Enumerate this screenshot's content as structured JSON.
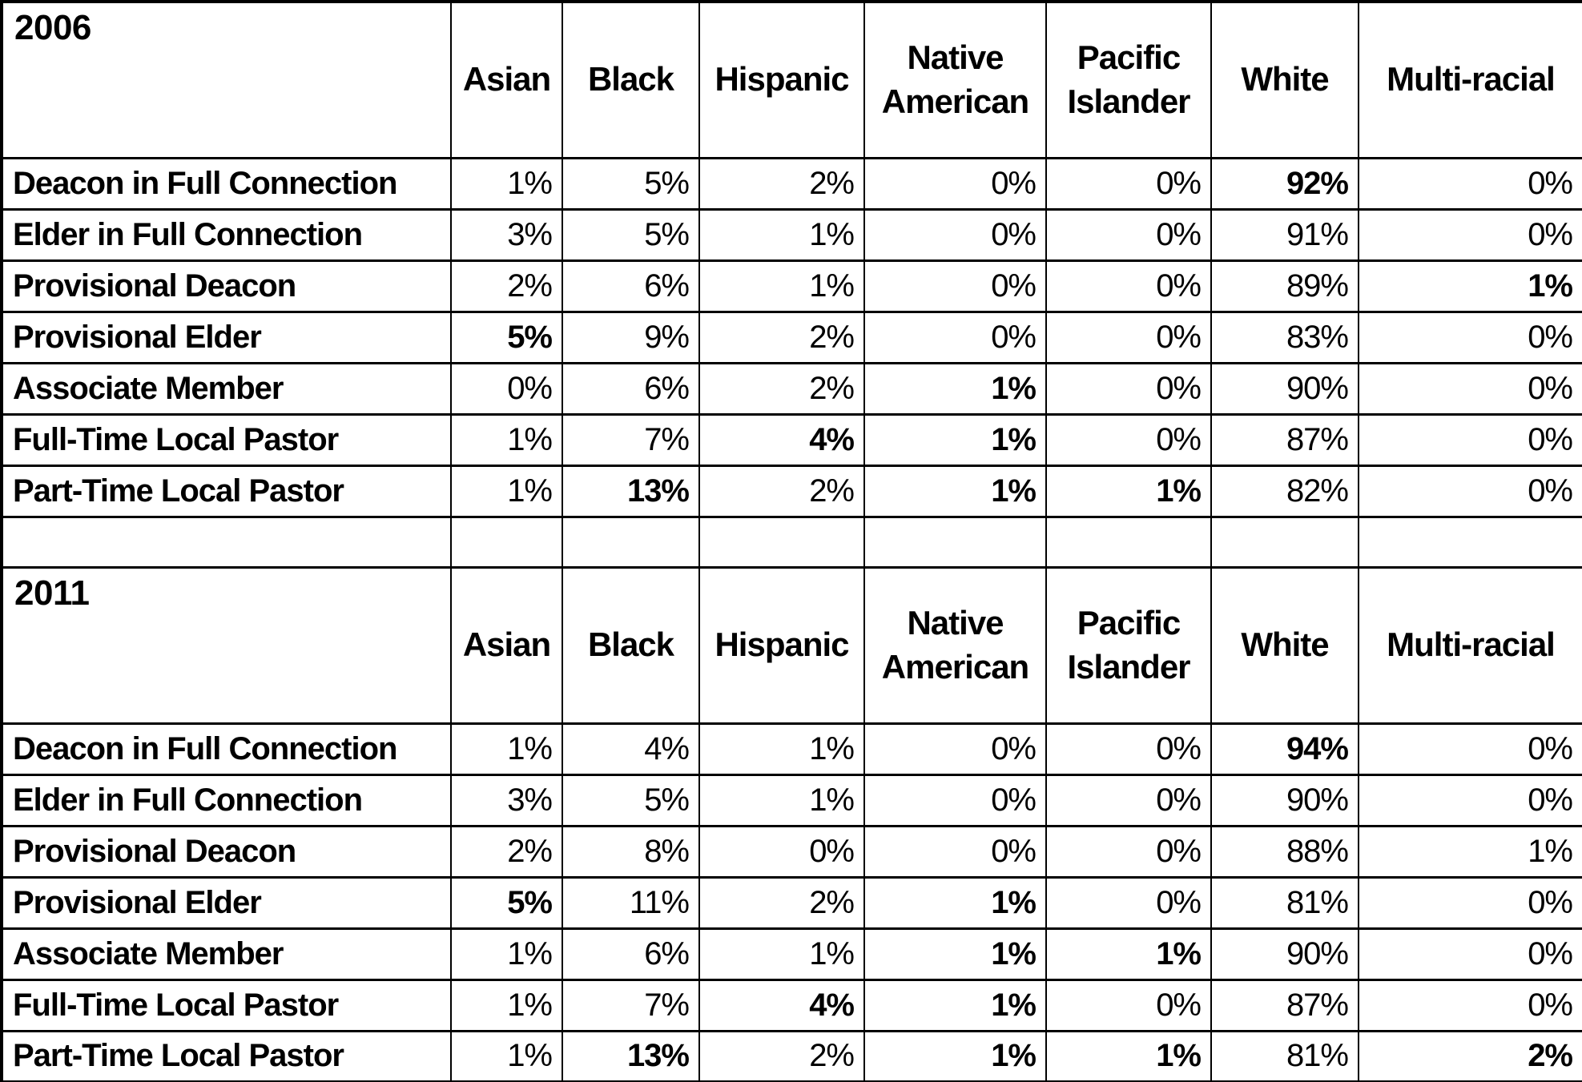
{
  "document": {
    "description": "Clergy racial composition by clergy type, 2006 vs 2011",
    "text_color": "#000000",
    "background_color": "#ffffff",
    "border_color": "#000000"
  },
  "sections": [
    {
      "year": "2006",
      "columns": [
        "Asian",
        "Black",
        "Hispanic",
        "Native American",
        "Pacific Islander",
        "White",
        "Multi-racial"
      ],
      "rows": [
        {
          "label": "Deacon in Full Connection",
          "values": [
            "1%",
            "5%",
            "2%",
            "0%",
            "0%",
            "92%",
            "0%"
          ],
          "bold": [
            false,
            false,
            false,
            false,
            false,
            true,
            false
          ]
        },
        {
          "label": "Elder in Full Connection",
          "values": [
            "3%",
            "5%",
            "1%",
            "0%",
            "0%",
            "91%",
            "0%"
          ],
          "bold": [
            false,
            false,
            false,
            false,
            false,
            false,
            false
          ]
        },
        {
          "label": "Provisional Deacon",
          "values": [
            "2%",
            "6%",
            "1%",
            "0%",
            "0%",
            "89%",
            "1%"
          ],
          "bold": [
            false,
            false,
            false,
            false,
            false,
            false,
            true
          ]
        },
        {
          "label": "Provisional Elder",
          "values": [
            "5%",
            "9%",
            "2%",
            "0%",
            "0%",
            "83%",
            "0%"
          ],
          "bold": [
            true,
            false,
            false,
            false,
            false,
            false,
            false
          ]
        },
        {
          "label": "Associate Member",
          "values": [
            "0%",
            "6%",
            "2%",
            "1%",
            "0%",
            "90%",
            "0%"
          ],
          "bold": [
            false,
            false,
            false,
            true,
            false,
            false,
            false
          ]
        },
        {
          "label": "Full-Time Local Pastor",
          "values": [
            "1%",
            "7%",
            "4%",
            "1%",
            "0%",
            "87%",
            "0%"
          ],
          "bold": [
            false,
            false,
            true,
            true,
            false,
            false,
            false
          ]
        },
        {
          "label": "Part-Time Local Pastor",
          "values": [
            "1%",
            "13%",
            "2%",
            "1%",
            "1%",
            "82%",
            "0%"
          ],
          "bold": [
            false,
            true,
            false,
            true,
            true,
            false,
            false
          ]
        }
      ]
    },
    {
      "year": "2011",
      "columns": [
        "Asian",
        "Black",
        "Hispanic",
        "Native American",
        "Pacific Islander",
        "White",
        "Multi-racial"
      ],
      "rows": [
        {
          "label": "Deacon in Full Connection",
          "values": [
            "1%",
            "4%",
            "1%",
            "0%",
            "0%",
            "94%",
            "0%"
          ],
          "bold": [
            false,
            false,
            false,
            false,
            false,
            true,
            false
          ]
        },
        {
          "label": "Elder in Full Connection",
          "values": [
            "3%",
            "5%",
            "1%",
            "0%",
            "0%",
            "90%",
            "0%"
          ],
          "bold": [
            false,
            false,
            false,
            false,
            false,
            false,
            false
          ]
        },
        {
          "label": "Provisional Deacon",
          "values": [
            "2%",
            "8%",
            "0%",
            "0%",
            "0%",
            "88%",
            "1%"
          ],
          "bold": [
            false,
            false,
            false,
            false,
            false,
            false,
            false
          ]
        },
        {
          "label": "Provisional Elder",
          "values": [
            "5%",
            "11%",
            "2%",
            "1%",
            "0%",
            "81%",
            "0%"
          ],
          "bold": [
            true,
            false,
            false,
            true,
            false,
            false,
            false
          ]
        },
        {
          "label": "Associate Member",
          "values": [
            "1%",
            "6%",
            "1%",
            "1%",
            "1%",
            "90%",
            "0%"
          ],
          "bold": [
            false,
            false,
            false,
            true,
            true,
            false,
            false
          ]
        },
        {
          "label": "Full-Time Local Pastor",
          "values": [
            "1%",
            "7%",
            "4%",
            "1%",
            "0%",
            "87%",
            "0%"
          ],
          "bold": [
            false,
            false,
            true,
            true,
            false,
            false,
            false
          ]
        },
        {
          "label": "Part-Time Local Pastor",
          "values": [
            "1%",
            "13%",
            "2%",
            "1%",
            "1%",
            "81%",
            "2%"
          ],
          "bold": [
            false,
            true,
            false,
            true,
            true,
            false,
            true
          ]
        }
      ]
    }
  ]
}
